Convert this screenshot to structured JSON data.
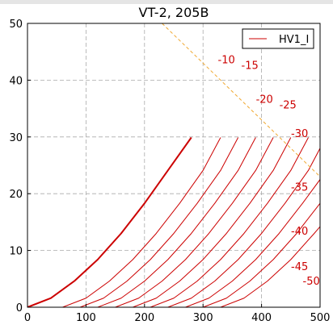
{
  "chart_data": {
    "type": "line",
    "title": "VT-2, 205B",
    "xlabel": "",
    "ylabel": "",
    "xlim": [
      0,
      500
    ],
    "ylim": [
      0,
      50
    ],
    "x_ticks": [
      "0",
      "100",
      "200",
      "300",
      "400",
      "500"
    ],
    "y_ticks": [
      "0",
      "10",
      "20",
      "30",
      "40",
      "50"
    ],
    "grid": true,
    "legend": {
      "position": "top-right",
      "entries": [
        "HV1_I"
      ]
    },
    "colors": {
      "curves": "#cc0000",
      "load_line": "#f0a830",
      "grid": "#aaaaaa"
    },
    "curve_labels": [
      "-10",
      "-15",
      "-20",
      "-25",
      "-30",
      "-35",
      "-40",
      "-45",
      "-50"
    ],
    "series": [
      {
        "grid_bias": "0",
        "x": [
          0,
          40,
          80,
          120,
          160,
          200,
          240,
          280
        ],
        "y": [
          0,
          1.6,
          4.6,
          8.4,
          13.0,
          18.3,
          24.1,
          29.9
        ]
      },
      {
        "grid_bias": "-5",
        "x": [
          60,
          100,
          140,
          180,
          220,
          260,
          300,
          330
        ],
        "y": [
          0,
          1.6,
          4.6,
          8.4,
          13.0,
          18.3,
          24.1,
          29.9
        ]
      },
      {
        "grid_bias": "-10",
        "x": [
          90,
          130,
          170,
          210,
          250,
          290,
          330,
          360
        ],
        "y": [
          0,
          1.6,
          4.6,
          8.4,
          13.0,
          18.3,
          24.1,
          29.9
        ]
      },
      {
        "grid_bias": "-15",
        "x": [
          120,
          160,
          200,
          240,
          280,
          320,
          360,
          390
        ],
        "y": [
          0,
          1.6,
          4.6,
          8.4,
          13.0,
          18.3,
          24.1,
          29.9
        ]
      },
      {
        "grid_bias": "-20",
        "x": [
          150,
          190,
          230,
          270,
          310,
          350,
          390,
          420
        ],
        "y": [
          0,
          1.6,
          4.6,
          8.4,
          13.0,
          18.3,
          24.1,
          29.9
        ]
      },
      {
        "grid_bias": "-25",
        "x": [
          180,
          220,
          260,
          300,
          340,
          380,
          420,
          450
        ],
        "y": [
          0,
          1.6,
          4.6,
          8.4,
          13.0,
          18.3,
          24.1,
          29.9
        ]
      },
      {
        "grid_bias": "-30",
        "x": [
          210,
          250,
          290,
          330,
          370,
          410,
          450,
          480
        ],
        "y": [
          0,
          1.6,
          4.6,
          8.4,
          13.0,
          18.3,
          24.1,
          29.9
        ]
      },
      {
        "grid_bias": "-35",
        "x": [
          240,
          280,
          320,
          360,
          400,
          440,
          480,
          500
        ],
        "y": [
          0,
          1.6,
          4.6,
          8.4,
          13.0,
          18.3,
          24.1,
          28.0
        ]
      },
      {
        "grid_bias": "-40",
        "x": [
          270,
          310,
          350,
          390,
          430,
          470,
          500
        ],
        "y": [
          0,
          1.6,
          4.6,
          8.4,
          13.0,
          18.3,
          22.5
        ]
      },
      {
        "grid_bias": "-45",
        "x": [
          300,
          340,
          380,
          420,
          460,
          500
        ],
        "y": [
          0,
          1.6,
          4.6,
          8.4,
          13.0,
          18.3
        ]
      },
      {
        "grid_bias": "-50",
        "x": [
          330,
          370,
          410,
          450,
          490,
          500
        ],
        "y": [
          0,
          1.6,
          4.6,
          8.4,
          13.0,
          14.2
        ]
      }
    ],
    "load_line": {
      "x": [
        230,
        500
      ],
      "y": [
        50,
        23
      ]
    }
  }
}
